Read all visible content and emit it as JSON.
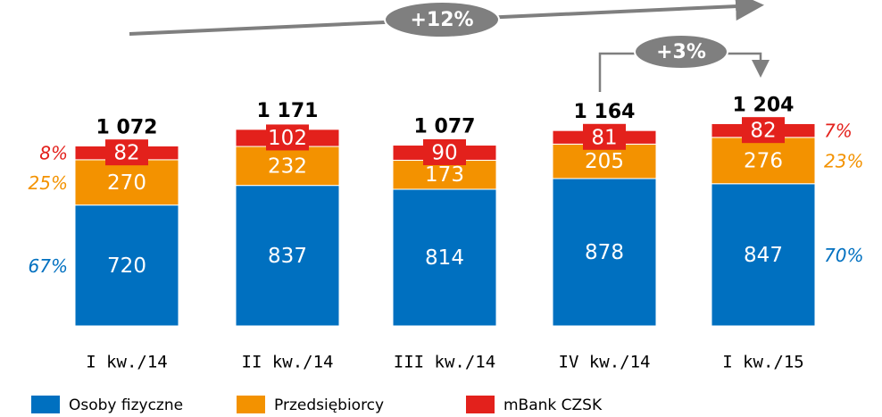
{
  "chart_data": {
    "type": "bar",
    "stacked": true,
    "categories": [
      "I kw./14",
      "II kw./14",
      "III kw./14",
      "IV kw./14",
      "I kw./15"
    ],
    "series": [
      {
        "name": "Osoby fizyczne",
        "color": "#0070c0",
        "values": [
          720,
          837,
          814,
          878,
          847
        ],
        "share_labels": [
          "67%",
          "70%"
        ]
      },
      {
        "name": "Przedsiębiorcy",
        "color": "#f39200",
        "values": [
          270,
          232,
          173,
          205,
          276
        ],
        "share_labels": [
          "25%",
          "23%"
        ]
      },
      {
        "name": "mBank CZSK",
        "color": "#e3211c",
        "values": [
          82,
          102,
          90,
          81,
          82
        ],
        "share_labels": [
          "8%",
          "7%"
        ]
      }
    ],
    "totals": {
      "values": [
        1072,
        1171,
        1077,
        1164,
        1204
      ],
      "value_labels": [
        "1 072",
        "1 171",
        "1 077",
        "1 164",
        "1 204"
      ]
    },
    "annotations": [
      "+12%",
      "+3%"
    ]
  }
}
